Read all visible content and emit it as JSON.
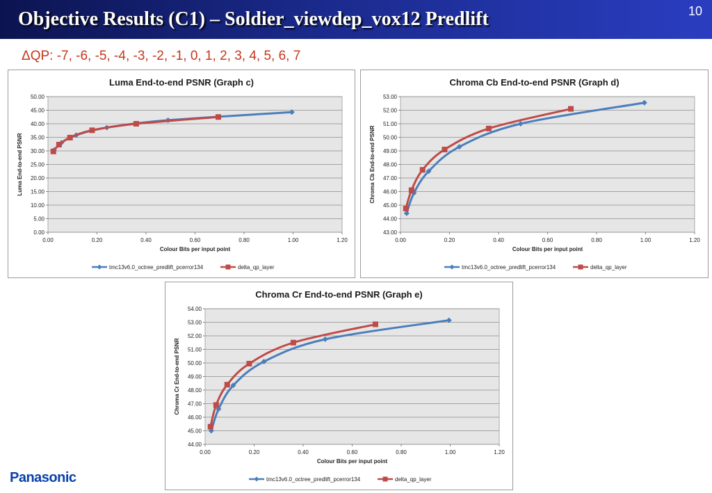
{
  "slide": {
    "title": "Objective Results (C1) – Soldier_viewdep_vox12 Predlift",
    "page_number": "10",
    "delta_qp_text": "ΔQP: -7, -6, -5, -4, -3, -2, -1, 0, 1, 2, 3, 4, 5, 6, 7",
    "logo_text": "Panasonic"
  },
  "colors": {
    "series_blue": "#4a7ebb",
    "series_red": "#be4b48",
    "plot_bg": "#e6e6e6"
  },
  "chart_data": [
    {
      "type": "line",
      "title": "Luma End-to-end PSNR (Graph c)",
      "xlabel": "Colour  Bits per input point",
      "ylabel": "Luma End-to-end PSNR",
      "xlim": [
        0,
        1.2
      ],
      "ylim": [
        0,
        50
      ],
      "xticks": [
        0,
        0.2,
        0.4,
        0.6,
        0.8,
        1.0,
        1.2
      ],
      "yticks": [
        0,
        5,
        10,
        15,
        20,
        25,
        30,
        35,
        40,
        45,
        50
      ],
      "grid": true,
      "legend": "bottom",
      "series": [
        {
          "name": "tmc13v6.0_octree_predlift_pcerror134",
          "marker": "diamond",
          "x": [
            0.025,
            0.055,
            0.115,
            0.24,
            0.49,
            0.995
          ],
          "y": [
            30.3,
            33.0,
            35.8,
            38.6,
            41.3,
            44.3
          ]
        },
        {
          "name": "delta_qp_layer",
          "marker": "square",
          "x": [
            0.022,
            0.045,
            0.09,
            0.18,
            0.36,
            0.695
          ],
          "y": [
            29.8,
            32.3,
            34.9,
            37.6,
            40.0,
            42.5
          ]
        }
      ]
    },
    {
      "type": "line",
      "title": "Chroma Cb End-to-end PSNR (Graph d)",
      "xlabel": "Colour  Bits per input point",
      "ylabel": "Chroma Cb End-to-end PSNR",
      "xlim": [
        0,
        1.2
      ],
      "ylim": [
        43,
        53
      ],
      "xticks": [
        0,
        0.2,
        0.4,
        0.6,
        0.8,
        1.0,
        1.2
      ],
      "yticks": [
        43,
        44,
        45,
        46,
        47,
        48,
        49,
        50,
        51,
        52,
        53
      ],
      "grid": true,
      "legend": "bottom",
      "series": [
        {
          "name": "tmc13v6.0_octree_predlift_pcerror134",
          "marker": "diamond",
          "x": [
            0.025,
            0.055,
            0.115,
            0.24,
            0.49,
            0.995
          ],
          "y": [
            44.4,
            45.9,
            47.5,
            49.3,
            51.0,
            52.55
          ]
        },
        {
          "name": "delta_qp_layer",
          "marker": "square",
          "x": [
            0.022,
            0.045,
            0.09,
            0.18,
            0.36,
            0.695
          ],
          "y": [
            44.75,
            46.1,
            47.6,
            49.1,
            50.65,
            52.1
          ]
        }
      ]
    },
    {
      "type": "line",
      "title": "Chroma Cr End-to-end PSNR (Graph e)",
      "xlabel": "Colour  Bits per input point",
      "ylabel": "Chroma Cr End-to-end PSNR",
      "xlim": [
        0,
        1.2
      ],
      "ylim": [
        44,
        54
      ],
      "xticks": [
        0,
        0.2,
        0.4,
        0.6,
        0.8,
        1.0,
        1.2
      ],
      "yticks": [
        44,
        45,
        46,
        47,
        48,
        49,
        50,
        51,
        52,
        53,
        54
      ],
      "grid": true,
      "legend": "bottom",
      "series": [
        {
          "name": "tmc13v6.0_octree_predlift_pcerror134",
          "marker": "diamond",
          "x": [
            0.025,
            0.055,
            0.115,
            0.24,
            0.49,
            0.995
          ],
          "y": [
            45.0,
            46.6,
            48.35,
            50.1,
            51.75,
            53.15
          ]
        },
        {
          "name": "delta_qp_layer",
          "marker": "square",
          "x": [
            0.022,
            0.045,
            0.09,
            0.18,
            0.36,
            0.695
          ],
          "y": [
            45.3,
            46.9,
            48.4,
            49.95,
            51.5,
            52.85
          ]
        }
      ]
    }
  ]
}
